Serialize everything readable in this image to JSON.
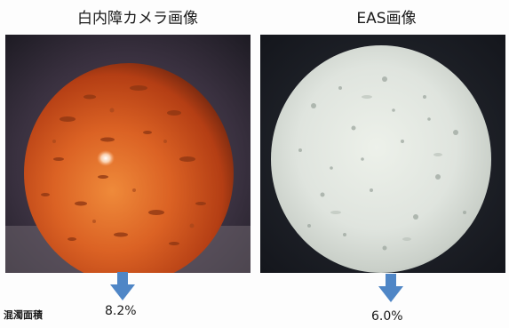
{
  "panels": [
    {
      "title": "白内障カメラ画像",
      "value": "8.2%"
    },
    {
      "title": "EAS画像",
      "value": "6.0%"
    }
  ],
  "metric_label": "混濁面積",
  "colors": {
    "arrow": "#4f86c6",
    "lens_orange": "#d4561c",
    "eas_white": "#dfe4de",
    "photo_background": "#1a1d24"
  },
  "icons": [
    "down-arrow-icon",
    "down-arrow-icon"
  ]
}
